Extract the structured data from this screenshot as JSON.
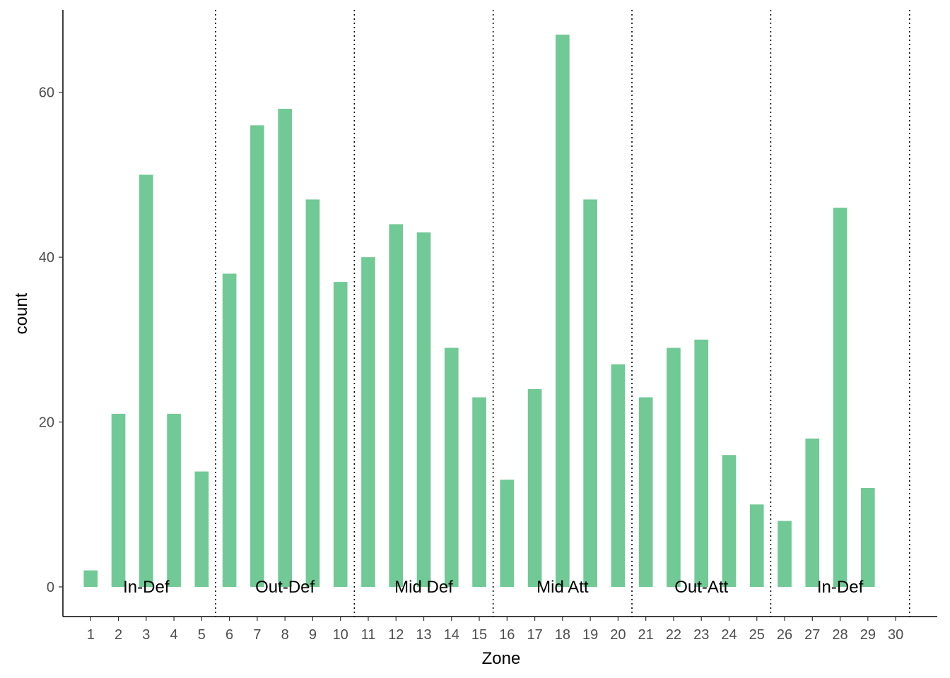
{
  "chart_data": {
    "type": "bar",
    "xlabel": "Zone",
    "ylabel": "count",
    "categories": [
      "1",
      "2",
      "3",
      "4",
      "5",
      "6",
      "7",
      "8",
      "9",
      "10",
      "11",
      "12",
      "13",
      "14",
      "15",
      "16",
      "17",
      "18",
      "19",
      "20",
      "21",
      "22",
      "23",
      "24",
      "25",
      "26",
      "27",
      "28",
      "29",
      "30"
    ],
    "values": [
      2,
      21,
      50,
      21,
      14,
      38,
      56,
      58,
      47,
      37,
      40,
      44,
      43,
      29,
      23,
      13,
      24,
      67,
      47,
      27,
      23,
      29,
      30,
      16,
      10,
      8,
      18,
      46,
      12,
      0
    ],
    "yticks": [
      0,
      20,
      40,
      60
    ],
    "ylim": [
      -3.6,
      70
    ],
    "xlim": [
      0,
      31.5
    ],
    "grid": false,
    "bar_color": "#71c995",
    "separator_style": "dotted",
    "separators_after_zone": [
      5,
      10,
      15,
      20,
      25,
      30
    ],
    "region_labels": [
      {
        "label": "In-Def",
        "center_zone": 3
      },
      {
        "label": "Out-Def",
        "center_zone": 8
      },
      {
        "label": "Mid Def",
        "center_zone": 13
      },
      {
        "label": "Mid Att",
        "center_zone": 18
      },
      {
        "label": "Out-Att",
        "center_zone": 23
      },
      {
        "label": "In-Def",
        "center_zone": 28
      }
    ]
  }
}
